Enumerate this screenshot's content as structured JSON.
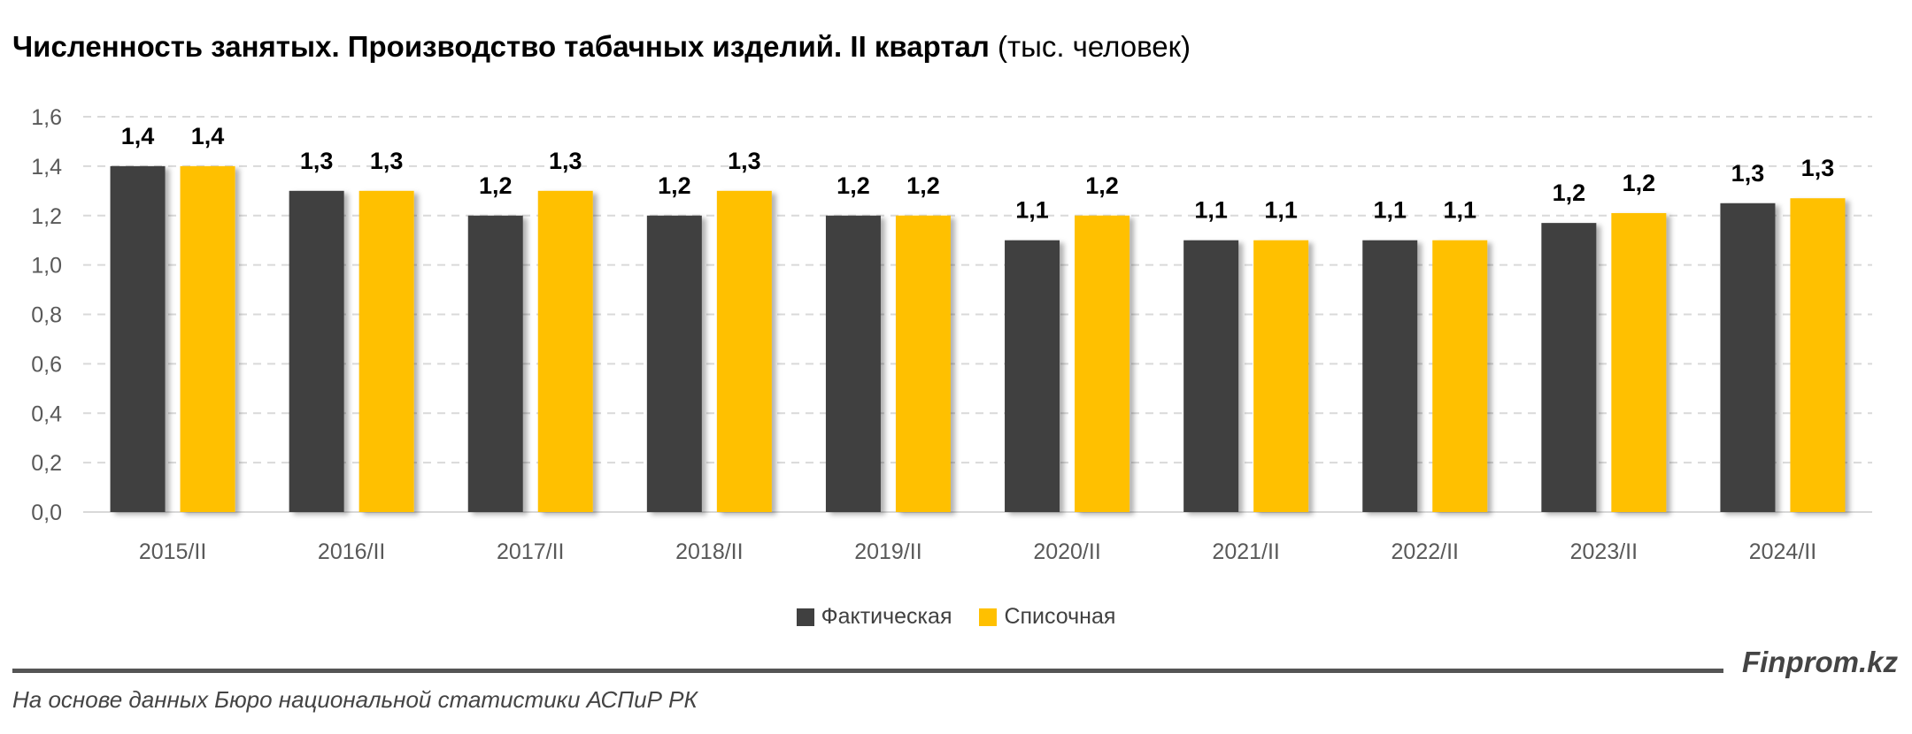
{
  "chart_data": {
    "type": "bar",
    "title": "Численность занятых. Производство табачных изделий. II квартал",
    "subtitle": "(тыс. человек)",
    "categories": [
      "2015/II",
      "2016/II",
      "2017/II",
      "2018/II",
      "2019/II",
      "2020/II",
      "2021/II",
      "2022/II",
      "2023/II",
      "2024/II"
    ],
    "series": [
      {
        "name": "Фактическая",
        "color": "#404040",
        "values": [
          1.4,
          1.3,
          1.2,
          1.2,
          1.2,
          1.1,
          1.1,
          1.1,
          1.17,
          1.25
        ],
        "labels": [
          "1,4",
          "1,3",
          "1,2",
          "1,2",
          "1,2",
          "1,1",
          "1,1",
          "1,1",
          "1,2",
          "1,3"
        ]
      },
      {
        "name": "Списочная",
        "color": "#FFC000",
        "values": [
          1.4,
          1.3,
          1.3,
          1.3,
          1.2,
          1.2,
          1.1,
          1.1,
          1.21,
          1.27
        ],
        "labels": [
          "1,4",
          "1,3",
          "1,3",
          "1,3",
          "1,2",
          "1,2",
          "1,1",
          "1,1",
          "1,2",
          "1,3"
        ]
      }
    ],
    "ylim": [
      0,
      1.6
    ],
    "yticks": [
      "0,0",
      "0,2",
      "0,4",
      "0,6",
      "0,8",
      "1,0",
      "1,2",
      "1,4",
      "1,6"
    ],
    "grid": true,
    "legend": "bottom"
  },
  "footer": {
    "brand": "Finprom.kz",
    "source": "На основе данных Бюро национальной статистики АСПиР РК"
  }
}
